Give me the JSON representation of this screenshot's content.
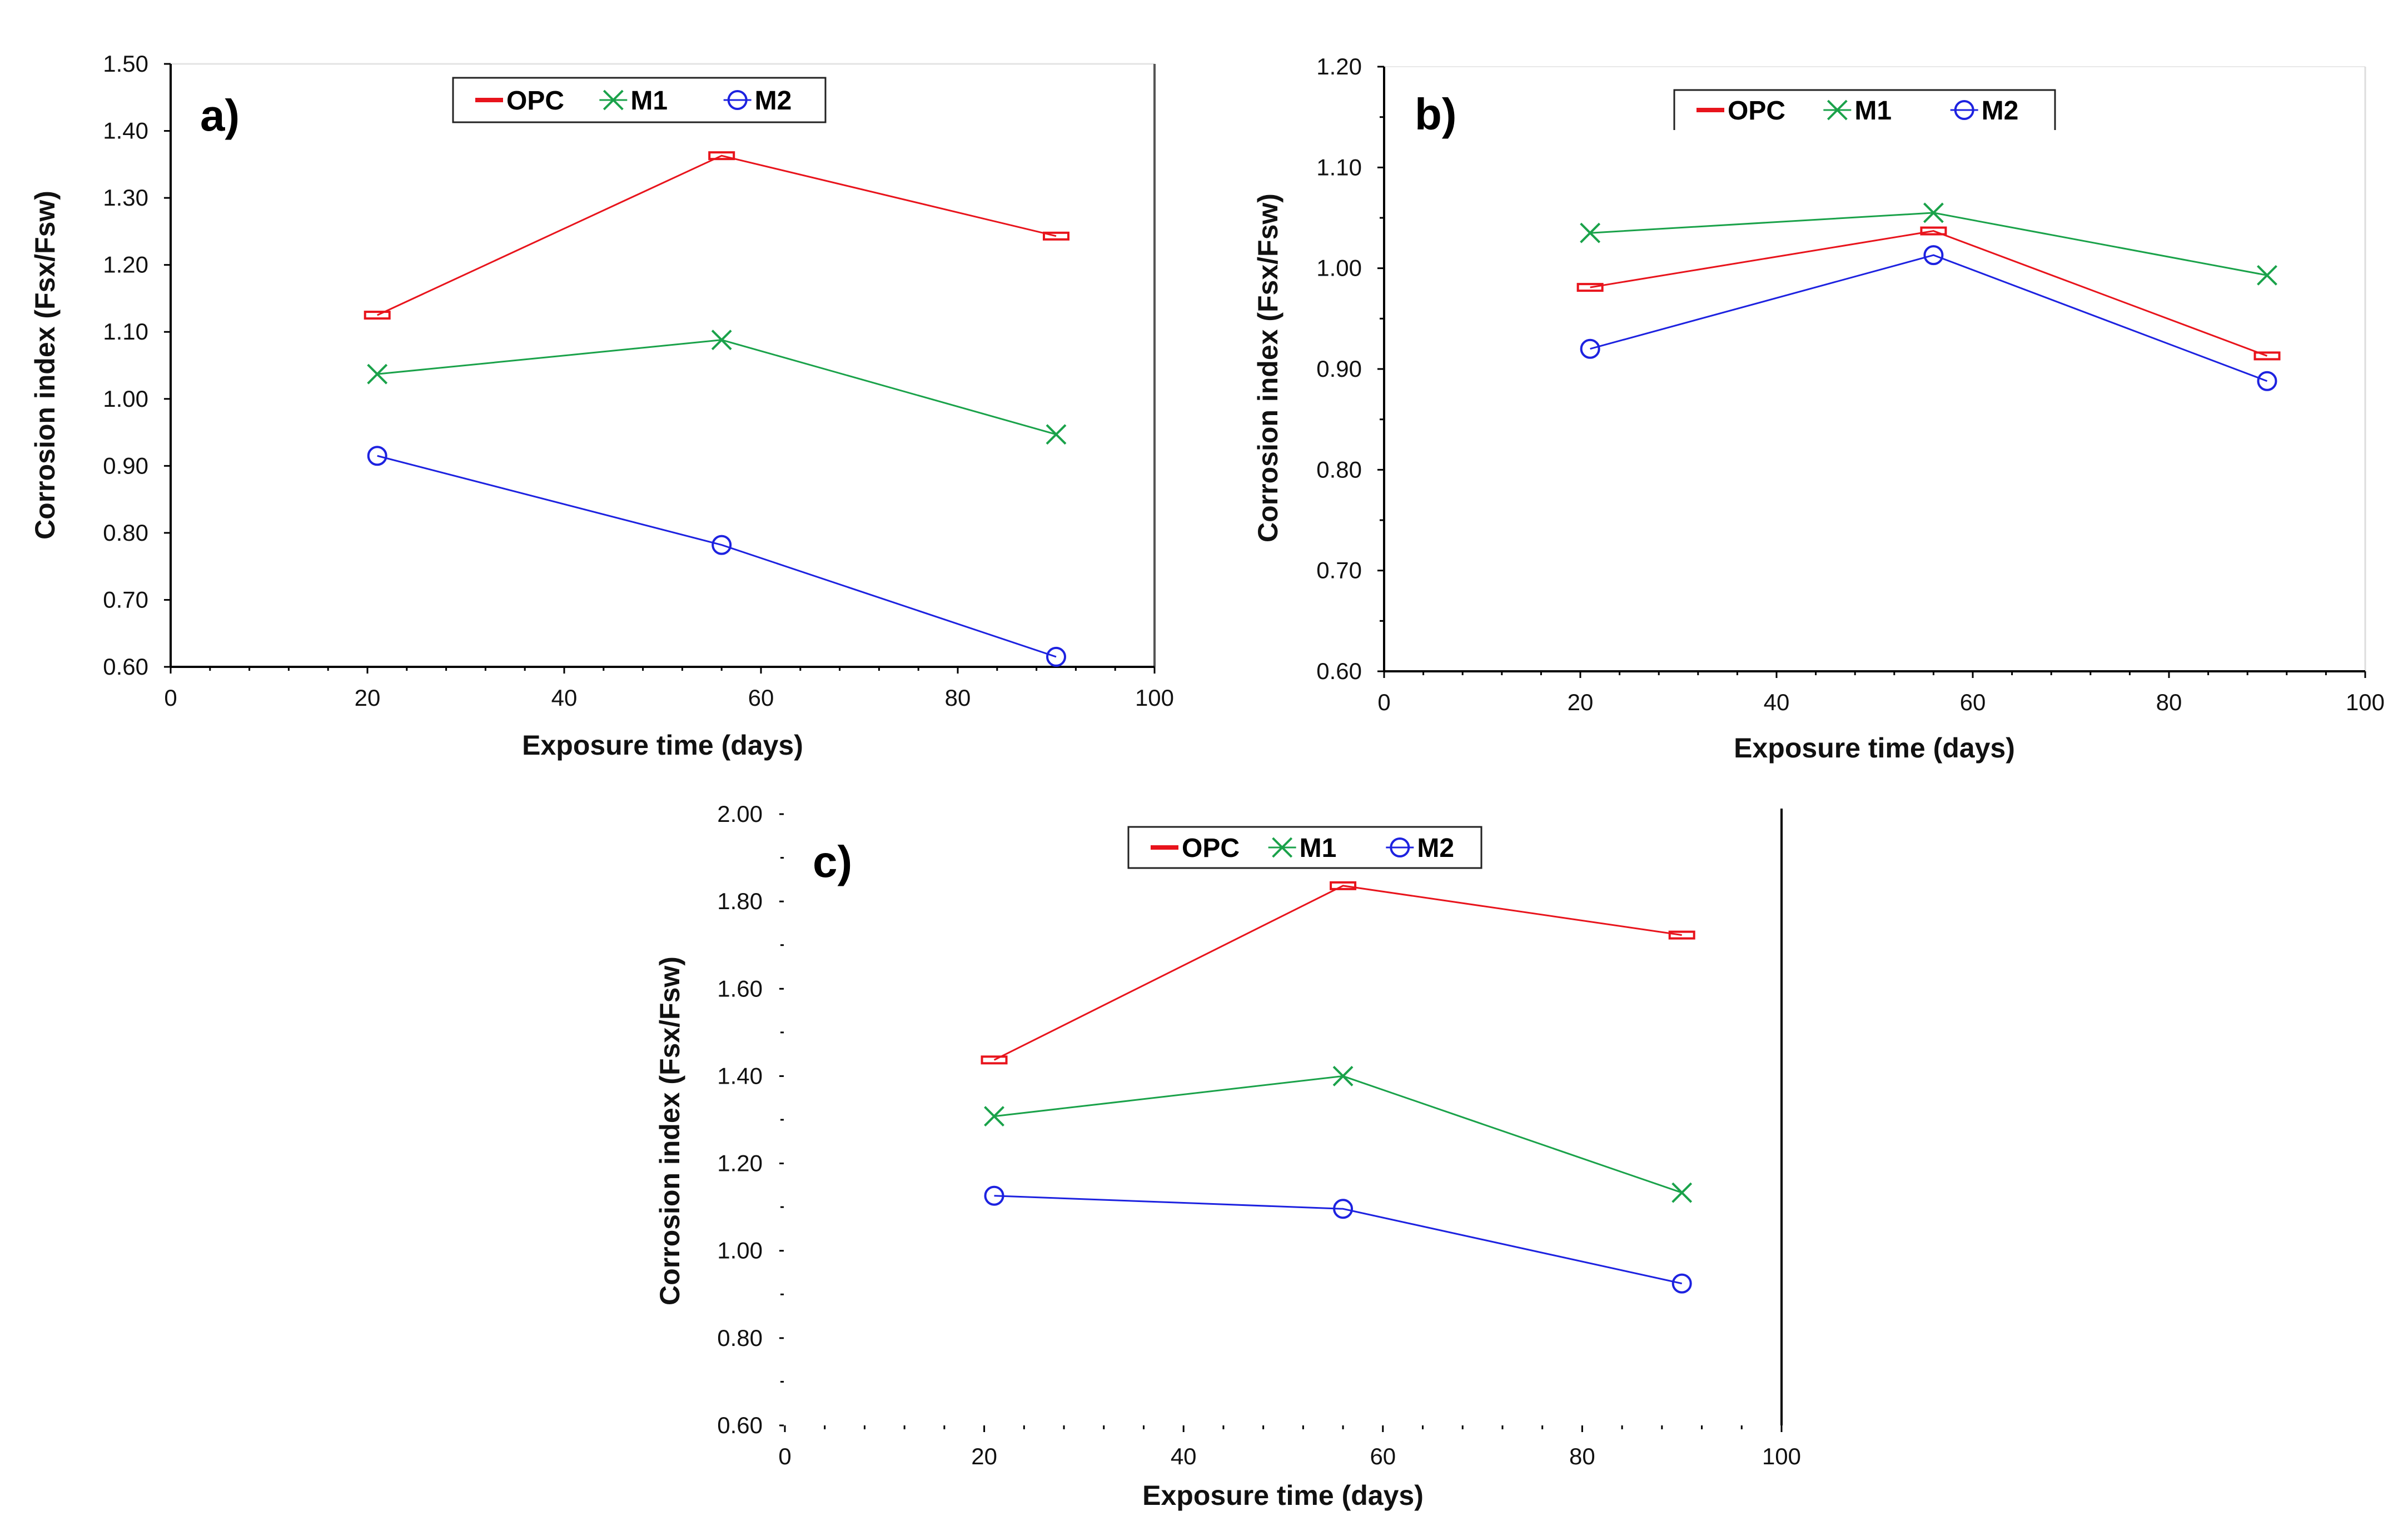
{
  "figure": {
    "series_styles": [
      {
        "name": "OPC",
        "color": "#e8141c",
        "marker": "dash"
      },
      {
        "name": "M1",
        "color": "#1aa24a",
        "marker": "x"
      },
      {
        "name": "M2",
        "color": "#1d22e0",
        "marker": "circle"
      }
    ]
  },
  "chart_data": [
    {
      "type": "line",
      "panel": "a)",
      "xlabel": "Exposure time (days)",
      "ylabel": "Corrosion index (Fsx/Fsw)",
      "xlim": [
        0,
        100
      ],
      "ylim": [
        0.6,
        1.5
      ],
      "x_ticks": [
        "0",
        "20",
        "40",
        "60",
        "80",
        "100"
      ],
      "y_ticks": [
        "0.60",
        "0.70",
        "0.80",
        "0.90",
        "1.00",
        "1.10",
        "1.20",
        "1.30",
        "1.40",
        "1.50"
      ],
      "legend": [
        "OPC",
        "M1",
        "M2"
      ],
      "x": [
        21,
        56,
        90
      ],
      "series": [
        {
          "name": "OPC",
          "values": [
            1.125,
            1.363,
            1.243
          ]
        },
        {
          "name": "M1",
          "values": [
            1.037,
            1.088,
            0.947
          ]
        },
        {
          "name": "M2",
          "values": [
            0.915,
            0.782,
            0.615
          ]
        }
      ]
    },
    {
      "type": "line",
      "panel": "b)",
      "xlabel": "Exposure time (days)",
      "ylabel": "Corrosion index (Fsx/Fsw)",
      "xlim": [
        0,
        100
      ],
      "ylim": [
        0.6,
        1.2
      ],
      "x_ticks": [
        "0",
        "20",
        "40",
        "60",
        "80",
        "100"
      ],
      "y_ticks": [
        "0.60",
        "0.70",
        "0.80",
        "0.90",
        "1.00",
        "1.10",
        "1.20"
      ],
      "legend": [
        "OPC",
        "M1",
        "M2"
      ],
      "x": [
        21,
        56,
        90
      ],
      "series": [
        {
          "name": "OPC",
          "values": [
            0.981,
            1.037,
            0.913
          ]
        },
        {
          "name": "M1",
          "values": [
            1.035,
            1.055,
            0.993
          ]
        },
        {
          "name": "M2",
          "values": [
            0.92,
            1.013,
            0.888
          ]
        }
      ]
    },
    {
      "type": "line",
      "panel": "c)",
      "xlabel": "Exposure time (days)",
      "ylabel": "Corrosion index (Fsx/Fsw)",
      "xlim": [
        0,
        100
      ],
      "ylim": [
        0.6,
        2.0
      ],
      "x_ticks": [
        "0",
        "20",
        "40",
        "60",
        "80",
        "100"
      ],
      "y_ticks": [
        "0.60",
        "0.80",
        "1.00",
        "1.20",
        "1.40",
        "1.60",
        "1.80",
        "2.00"
      ],
      "legend": [
        "OPC",
        "M1",
        "M2"
      ],
      "x": [
        21,
        56,
        90
      ],
      "series": [
        {
          "name": "OPC",
          "values": [
            1.437,
            1.836,
            1.723
          ]
        },
        {
          "name": "M1",
          "values": [
            1.308,
            1.4,
            1.133
          ]
        },
        {
          "name": "M2",
          "values": [
            1.126,
            1.096,
            0.925
          ]
        }
      ]
    }
  ]
}
